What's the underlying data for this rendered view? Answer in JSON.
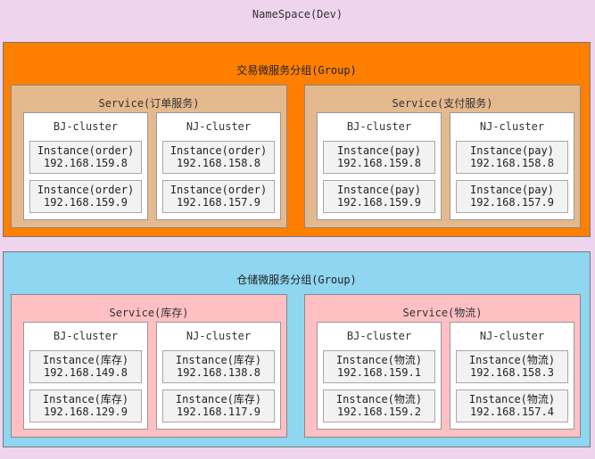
{
  "namespace": {
    "title": "NameSpace(Dev)"
  },
  "groups": [
    {
      "title": "交易微服务分组(Group)",
      "color": "#ff7f00",
      "services": [
        {
          "title": "Service(订单服务)",
          "clusters": [
            {
              "title": "BJ-cluster",
              "instances": [
                {
                  "name": "Instance(order)",
                  "ip": "192.168.159.8"
                },
                {
                  "name": "Instance(order)",
                  "ip": "192.168.159.9"
                }
              ]
            },
            {
              "title": "NJ-cluster",
              "instances": [
                {
                  "name": "Instance(order)",
                  "ip": "192.168.158.8"
                },
                {
                  "name": "Instance(order)",
                  "ip": "192.168.157.9"
                }
              ]
            }
          ]
        },
        {
          "title": "Service(支付服务)",
          "clusters": [
            {
              "title": "BJ-cluster",
              "instances": [
                {
                  "name": "Instance(pay)",
                  "ip": "192.168.159.8"
                },
                {
                  "name": "Instance(pay)",
                  "ip": "192.168.159.9"
                }
              ]
            },
            {
              "title": "NJ-cluster",
              "instances": [
                {
                  "name": "Instance(pay)",
                  "ip": "192.168.158.8"
                },
                {
                  "name": "Instance(pay)",
                  "ip": "192.168.157.9"
                }
              ]
            }
          ]
        }
      ]
    },
    {
      "title": "仓储微服务分组(Group)",
      "color": "#8fd6f0",
      "services": [
        {
          "title": "Service(库存)",
          "clusters": [
            {
              "title": "BJ-cluster",
              "instances": [
                {
                  "name": "Instance(库存)",
                  "ip": "192.168.149.8"
                },
                {
                  "name": "Instance(库存)",
                  "ip": "192.168.129.9"
                }
              ]
            },
            {
              "title": "NJ-cluster",
              "instances": [
                {
                  "name": "Instance(库存)",
                  "ip": "192.168.138.8"
                },
                {
                  "name": "Instance(库存)",
                  "ip": "192.168.117.9"
                }
              ]
            }
          ]
        },
        {
          "title": "Service(物流)",
          "clusters": [
            {
              "title": "BJ-cluster",
              "instances": [
                {
                  "name": "Instance(物流)",
                  "ip": "192.168.159.1"
                },
                {
                  "name": "Instance(物流)",
                  "ip": "192.168.159.2"
                }
              ]
            },
            {
              "title": "NJ-cluster",
              "instances": [
                {
                  "name": "Instance(物流)",
                  "ip": "192.168.158.3"
                },
                {
                  "name": "Instance(物流)",
                  "ip": "192.168.157.4"
                }
              ]
            }
          ]
        }
      ]
    }
  ]
}
